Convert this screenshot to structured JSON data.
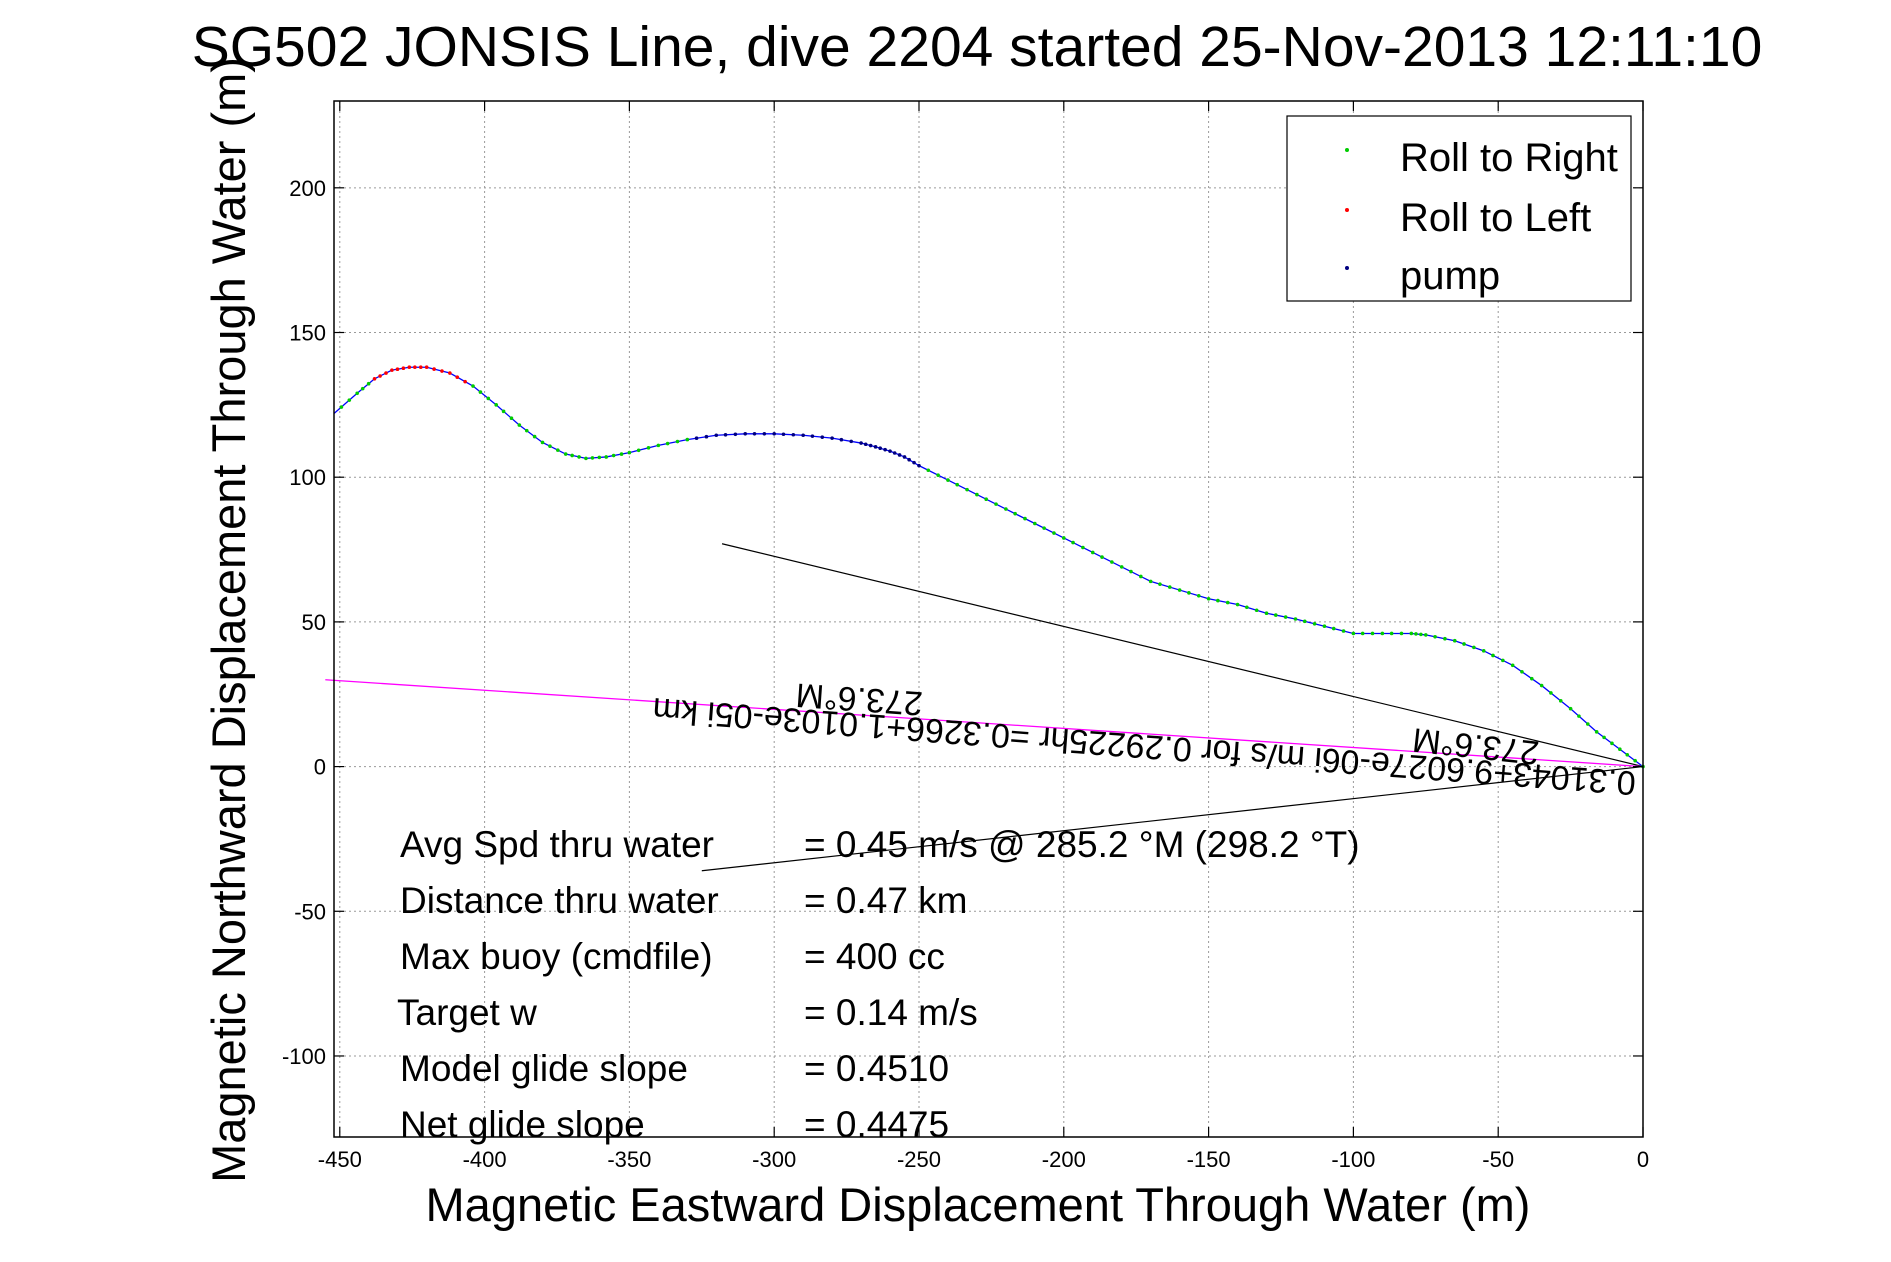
{
  "chart_data": {
    "type": "line",
    "title": "SG502 JONSIS Line, dive 2204 started 25-Nov-2013 12:11:10",
    "xlabel": "Magnetic Eastward Displacement Through Water (m)",
    "ylabel": "Magnetic Northward Displacement Through Water (m)",
    "xlim": [
      -452,
      0
    ],
    "ylim": [
      -128,
      230
    ],
    "xticks": [
      -450,
      -400,
      -350,
      -300,
      -250,
      -200,
      -150,
      -100,
      -50,
      0
    ],
    "yticks": [
      -100,
      -50,
      0,
      50,
      100,
      150,
      200
    ],
    "grid": true,
    "legend_position": "top-right",
    "legend": [
      {
        "label": "Roll to Right",
        "color": "#00cc00"
      },
      {
        "label": "Roll to Left",
        "color": "#ff0000"
      },
      {
        "label": "pump",
        "color": "#000080"
      }
    ],
    "series": [
      {
        "color": "#0000ff",
        "x": [
          0,
          -8,
          -16,
          -25,
          -35,
          -45,
          -55,
          -65,
          -75,
          -80,
          -90,
          -100,
          -110,
          -120,
          -130,
          -140,
          -150,
          -160,
          -170,
          -180,
          -190,
          -200,
          -210,
          -220,
          -230,
          -240,
          -250,
          -255,
          -260,
          -265,
          -270,
          -280,
          -290,
          -300,
          -310,
          -320,
          -330,
          -340,
          -350,
          -358,
          -365,
          -372,
          -380,
          -388,
          -396,
          -404,
          -412,
          -420,
          -426,
          -432,
          -438,
          -444,
          -452
        ],
        "y": [
          0,
          6,
          12,
          20,
          28,
          35,
          40,
          43.5,
          45.5,
          46,
          46,
          46,
          48.5,
          51,
          53,
          56,
          58,
          61,
          64,
          69,
          74,
          79,
          84,
          89,
          94,
          99,
          104,
          107,
          109,
          110.5,
          111.8,
          113.5,
          114.5,
          115,
          115,
          114.5,
          113,
          111,
          108.5,
          107,
          106.5,
          108,
          112,
          118,
          125,
          131.5,
          136,
          138,
          138,
          137,
          134,
          129,
          122
        ]
      }
    ],
    "current_vectors": {
      "color": "#000000",
      "start": [
        0,
        0
      ],
      "ends": [
        [
          -318,
          77
        ],
        [
          -325,
          -36
        ]
      ]
    },
    "current_estimate_line": {
      "color": "#ff00ff",
      "x": [
        0,
        -455
      ],
      "y": [
        0,
        30
      ]
    },
    "annotations": [
      {
        "text": "273.6°M",
        "x": -31,
        "y": 14
      },
      {
        "text": "0.31043+9.6027e-06i m/s for 0.29225hr =0.3266+1.0103e-05i km",
        "x": -172,
        "y": 13
      },
      {
        "text": "273.6°M",
        "x": -309,
        "y": 28
      }
    ],
    "stats": [
      {
        "label": "Avg Spd thru water",
        "value": "=  0.45 m/s @ 285.2 °M (298.2 °T)"
      },
      {
        "label": "Distance thru water",
        "value": "=  0.47 km"
      },
      {
        "label": "Max buoy (cmdfile)",
        "value": "= 400 cc"
      },
      {
        "label": "Target w",
        "value": "= 0.14 m/s"
      },
      {
        "label": "Model glide slope",
        "value": "= 0.4510"
      },
      {
        "label": "Net glide slope",
        "value": "= 0.4475"
      }
    ]
  }
}
